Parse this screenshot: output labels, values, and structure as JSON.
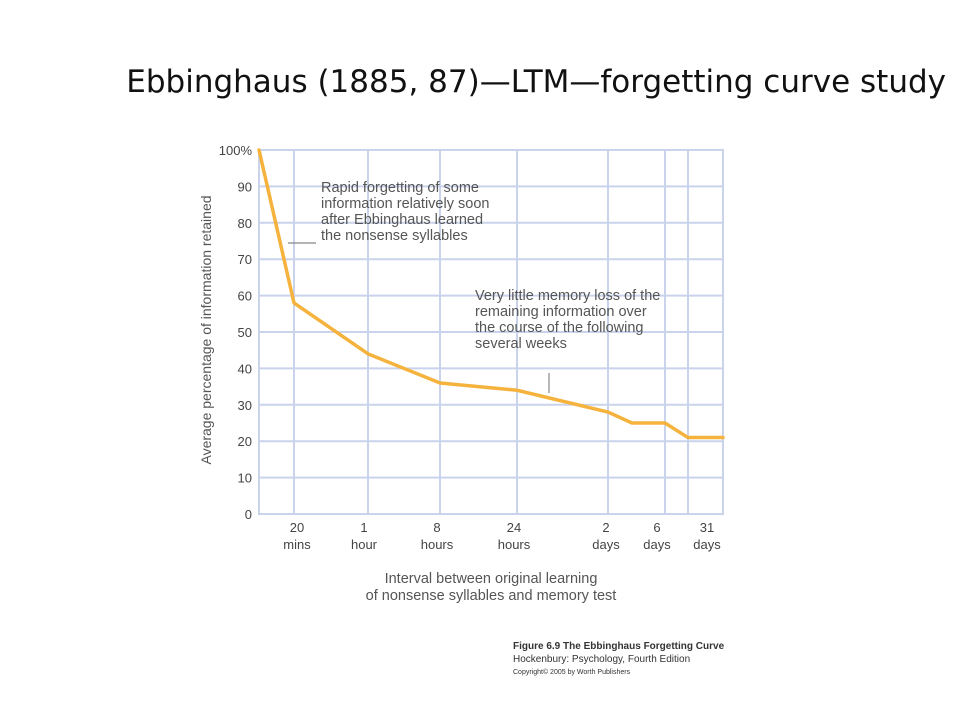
{
  "slide": {
    "title": "Ebbinghaus (1885, 87)—LTM—forgetting curve study"
  },
  "chart_data": {
    "type": "line",
    "ylabel": "Average percentage of information retained",
    "xlabel": [
      "Interval between original learning",
      "of nonsense syllables and memory test"
    ],
    "ylim": [
      0,
      100
    ],
    "yticks": [
      0,
      10,
      20,
      30,
      40,
      50,
      60,
      70,
      80,
      90,
      100
    ],
    "ytick_labels": [
      "0",
      "10",
      "20",
      "30",
      "40",
      "50",
      "60",
      "70",
      "80",
      "90",
      "100%"
    ],
    "x_tick_labels": [
      {
        "top": "20",
        "bottom": "mins"
      },
      {
        "top": "1",
        "bottom": "hour"
      },
      {
        "top": "8",
        "bottom": "hours"
      },
      {
        "top": "24",
        "bottom": "hours"
      },
      {
        "top": "2",
        "bottom": "days"
      },
      {
        "top": "6",
        "bottom": "days"
      },
      {
        "top": "31",
        "bottom": "days"
      }
    ],
    "series": [
      {
        "color": "#F5B33E",
        "points": [
          {
            "x": "0",
            "y": 100
          },
          {
            "x": "20 mins",
            "y": 58
          },
          {
            "x": "1 hour",
            "y": 44
          },
          {
            "x": "8 hours",
            "y": 36
          },
          {
            "x": "24 hours",
            "y": 34
          },
          {
            "x": "",
            "y": 28
          },
          {
            "x": "2 days",
            "y": 25
          },
          {
            "x": "6 days",
            "y": 25
          },
          {
            "x": "",
            "y": 21
          },
          {
            "x": "31 days",
            "y": 21
          }
        ]
      }
    ],
    "annotations": [
      {
        "lines": [
          "Rapid forgetting of some",
          "information relatively soon",
          "after Ebbinghaus learned",
          "the nonsense syllables"
        ]
      },
      {
        "lines": [
          "Very little memory loss of the",
          "remaining information over",
          "the course of the following",
          "several weeks"
        ]
      }
    ],
    "grid": true,
    "colors": {
      "line": "#F5B33E",
      "grid": "#C9D3EC",
      "plot_border": "#C9D3EC"
    }
  },
  "caption": {
    "line1": "Figure 6.9 The Ebbinghaus Forgetting Curve",
    "line2": "Hockenbury: Psychology, Fourth Edition",
    "line3": "Copyright© 2005 by Worth Publishers"
  }
}
